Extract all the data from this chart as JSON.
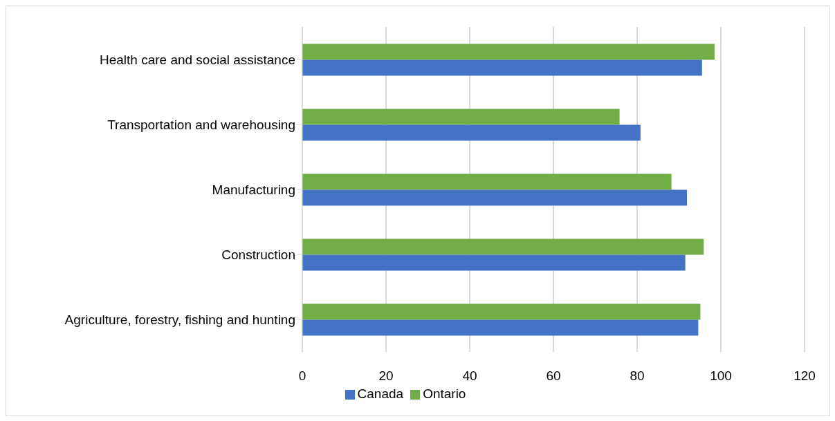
{
  "chart_data": {
    "type": "bar",
    "orientation": "horizontal",
    "categories": [
      "Health care and social assistance",
      "Transportation and warehousing",
      "Manufacturing",
      "Construction",
      "Agriculture, forestry, fishing and hunting"
    ],
    "series": [
      {
        "name": "Ontario",
        "color": "#70ad47",
        "values": [
          98.5,
          75.8,
          88.2,
          95.9,
          95.1
        ]
      },
      {
        "name": "Canada",
        "color": "#4472c4",
        "values": [
          95.5,
          80.8,
          91.9,
          91.5,
          94.6
        ]
      }
    ],
    "xlim": [
      0,
      120
    ],
    "xticks": [
      0,
      20,
      40,
      60,
      80,
      100,
      120
    ],
    "grid": "x",
    "legend": "bottom"
  }
}
